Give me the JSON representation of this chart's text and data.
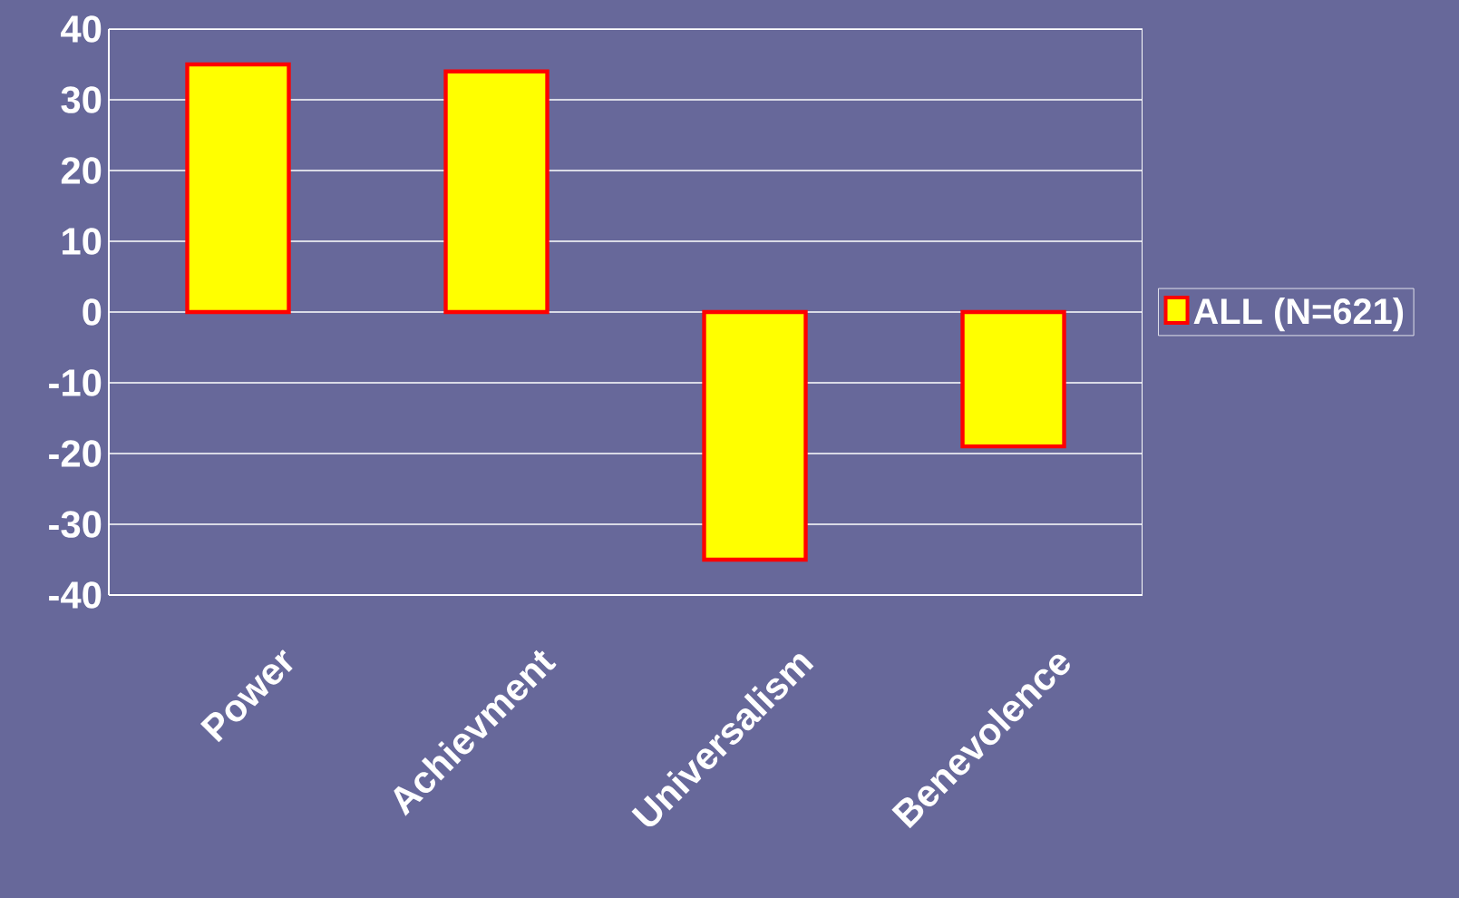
{
  "chart_data": {
    "type": "bar",
    "categories": [
      "Power",
      "Achievment",
      "Universalism",
      "Benevolence"
    ],
    "series": [
      {
        "name": "ALL (N=621)",
        "color": "#ffff00",
        "values": [
          35,
          34,
          -35,
          -19
        ]
      }
    ],
    "ylim": [
      -40,
      40
    ],
    "yticks": [
      -40,
      -30,
      -20,
      -10,
      0,
      10,
      20,
      30,
      40
    ],
    "grid": "y",
    "legend": "right"
  }
}
